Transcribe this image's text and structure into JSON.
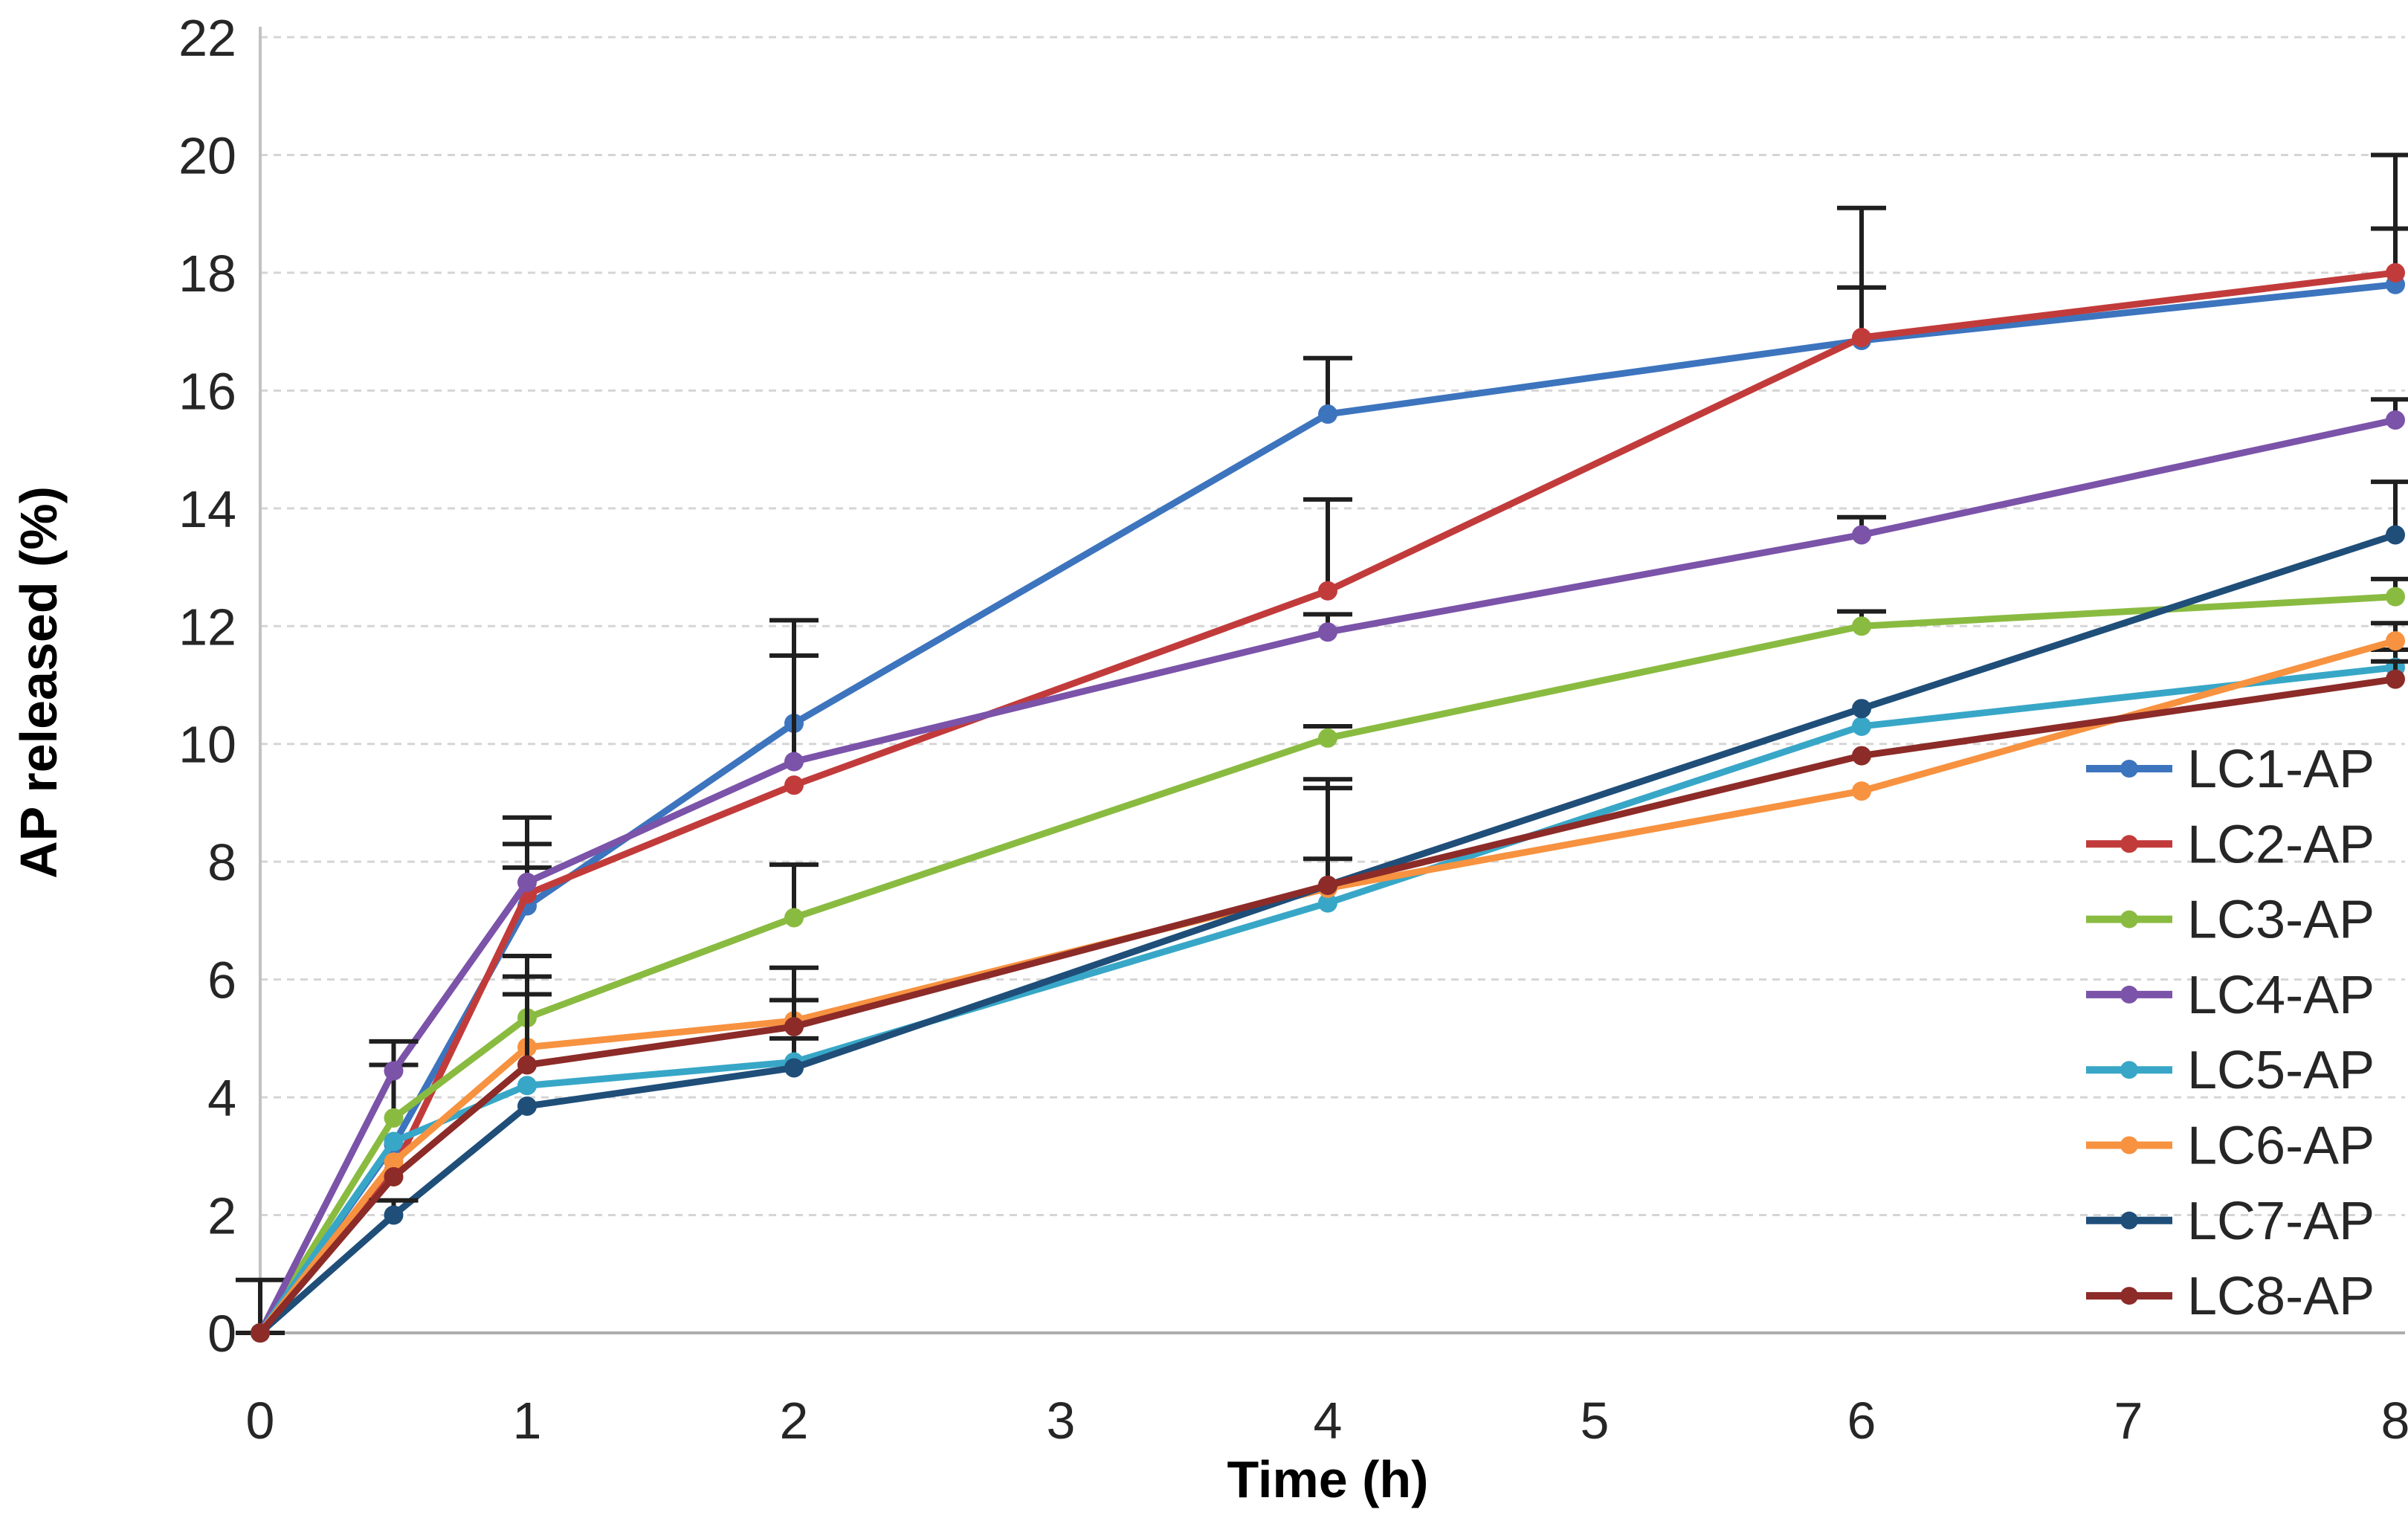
{
  "chart_data": {
    "type": "line",
    "title": "",
    "xlabel": "Time (h)",
    "ylabel": "AP released (%)",
    "x": [
      0,
      0.5,
      1,
      2,
      4,
      6,
      8
    ],
    "xlim": [
      0,
      8
    ],
    "ylim": [
      0,
      22
    ],
    "x_ticks": [
      0,
      1,
      2,
      3,
      4,
      5,
      6,
      7,
      8
    ],
    "y_ticks": [
      0,
      2,
      4,
      6,
      8,
      10,
      12,
      14,
      16,
      18,
      20,
      22
    ],
    "grid": "horizontal-dashed",
    "legend_position": "right-inside-transparent",
    "marker": "circle",
    "series": [
      {
        "name": "LC1-AP",
        "color": "#3D74BE",
        "values": [
          0,
          3.2,
          7.25,
          10.35,
          15.6,
          16.85,
          17.8
        ],
        "err": [
          0.9,
          0,
          0.65,
          1.75,
          0.95,
          0.9,
          0.95
        ]
      },
      {
        "name": "LC2-AP",
        "color": "#C23B3B",
        "values": [
          0,
          2.75,
          7.45,
          9.3,
          12.6,
          16.9,
          18.0
        ],
        "err": [
          0,
          0,
          0.85,
          0,
          1.55,
          2.2,
          2.0
        ]
      },
      {
        "name": "LC3-AP",
        "color": "#8ABB41",
        "values": [
          0,
          3.65,
          5.35,
          7.05,
          10.1,
          12.0,
          12.5
        ],
        "err": [
          0,
          0.9,
          1.05,
          0.9,
          0.2,
          0.25,
          0.3
        ]
      },
      {
        "name": "LC4-AP",
        "color": "#7B53A9",
        "values": [
          0,
          4.45,
          7.65,
          9.7,
          11.9,
          13.55,
          15.5
        ],
        "err": [
          0,
          0.5,
          1.1,
          1.8,
          0.3,
          0.3,
          0.35
        ]
      },
      {
        "name": "LC5-AP",
        "color": "#38A7C7",
        "values": [
          0,
          3.25,
          4.2,
          4.6,
          7.3,
          10.3,
          11.3
        ],
        "err": [
          0,
          0,
          0,
          0.4,
          0,
          0,
          0.3
        ]
      },
      {
        "name": "LC6-AP",
        "color": "#F79240",
        "values": [
          0,
          2.9,
          4.85,
          5.3,
          7.55,
          9.2,
          11.75
        ],
        "err": [
          0,
          0,
          1.2,
          0.9,
          0.5,
          0,
          0.3
        ]
      },
      {
        "name": "LC7-AP",
        "color": "#1F4E79",
        "values": [
          0,
          2.0,
          3.85,
          4.5,
          7.6,
          10.6,
          13.55
        ],
        "err": [
          0,
          0.25,
          0,
          0,
          1.8,
          0,
          0.9
        ]
      },
      {
        "name": "LC8-AP",
        "color": "#8C2B28",
        "values": [
          0,
          2.65,
          4.55,
          5.2,
          7.6,
          9.8,
          11.1
        ],
        "err": [
          0,
          0,
          1.2,
          0.45,
          1.65,
          0,
          0.3
        ]
      }
    ]
  },
  "colors": {
    "grid": "#D5D5D5",
    "axis_line": "#C2C2C2",
    "baseline": "#ADADAD",
    "tick_label": "#262626",
    "legend_label": "#262626",
    "error_bar": "#1F1F1F",
    "background": "#FFFFFF"
  }
}
